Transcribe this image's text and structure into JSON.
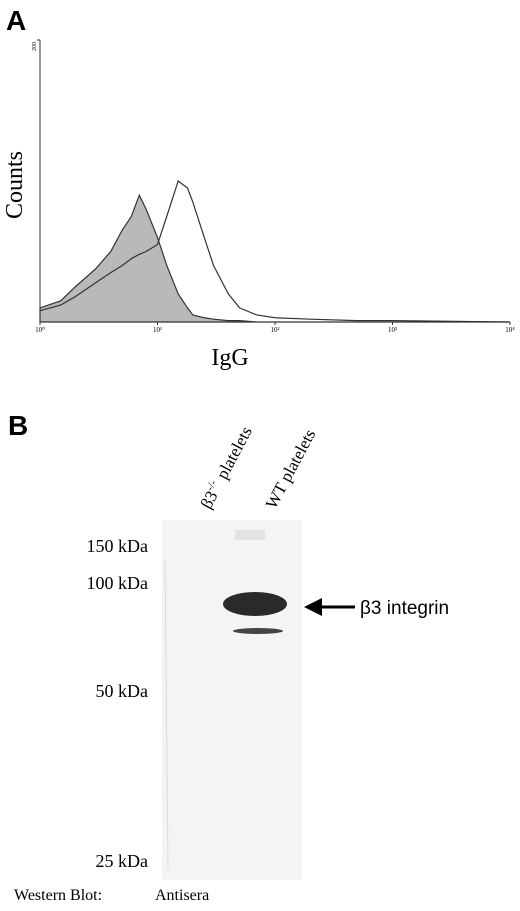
{
  "chart_data": {
    "type": "histogram-overlay",
    "panel": "A",
    "y_label": "Counts",
    "x_label": "IgG",
    "log_x": true,
    "x": [
      1,
      1.5,
      2,
      3,
      4,
      5,
      6,
      7,
      8,
      10,
      12,
      15,
      18,
      20,
      25,
      30,
      40,
      50,
      70,
      100,
      200,
      500,
      1000,
      10000
    ],
    "series": [
      {
        "color": "#b9b9b9",
        "filled": true,
        "values": [
          10,
          15,
          25,
          38,
          50,
          65,
          75,
          90,
          80,
          60,
          40,
          20,
          10,
          5,
          3,
          2,
          1,
          1,
          0,
          0,
          0,
          0,
          0,
          0
        ]
      },
      {
        "color": "#333333",
        "filled": false,
        "values": [
          8,
          12,
          18,
          28,
          35,
          40,
          45,
          48,
          50,
          55,
          75,
          100,
          95,
          85,
          60,
          40,
          20,
          10,
          5,
          3,
          2,
          1,
          1,
          0
        ]
      }
    ],
    "xlim": [
      1,
      10000
    ],
    "xticks": [
      {
        "value": 1,
        "label": "10⁰"
      },
      {
        "value": 10,
        "label": "10¹"
      },
      {
        "value": 100,
        "label": "10²"
      },
      {
        "value": 1000,
        "label": "10³"
      },
      {
        "value": 10000,
        "label": "10⁴"
      }
    ],
    "ylim": [
      0,
      200
    ],
    "yticks": [
      200
    ]
  },
  "blot": {
    "panel": "B",
    "lanes": [
      {
        "label": "β3",
        "superscript": "-/-",
        "suffix": "platelets"
      },
      {
        "label": "WT platelets"
      }
    ],
    "markers": [
      "150 kDa",
      "100 kDa",
      "50 kDa",
      "25 kDa"
    ],
    "band_label": "β3 integrin",
    "footer": [
      "Western Blot:",
      "Antisera"
    ]
  }
}
